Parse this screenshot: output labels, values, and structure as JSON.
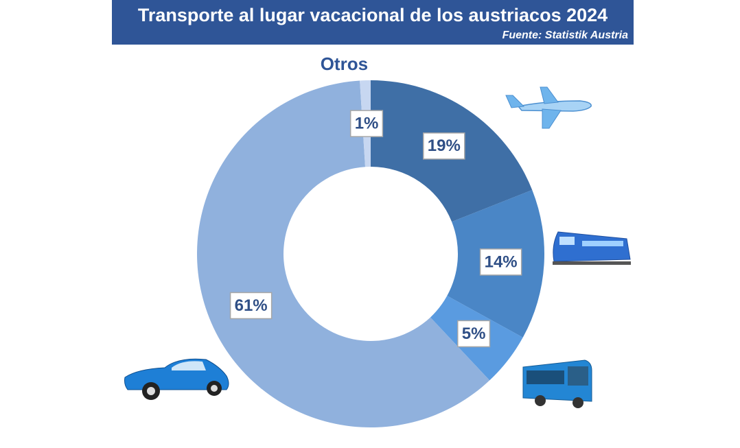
{
  "chart_data": {
    "type": "donut",
    "title": "Transporte al lugar vacacional de los austriacos 2024",
    "subtitle": "Fuente: Statistik Austria",
    "categories": [
      null,
      null,
      null,
      null,
      "Otros"
    ],
    "values": [
      19,
      14,
      5,
      61,
      1
    ],
    "value_labels": [
      "19%",
      "14%",
      "5%",
      "61%",
      "1%"
    ],
    "colors": [
      "#3f6fa6",
      "#4a86c6",
      "#5a9be0",
      "#90b1dd",
      "#c7d7f1"
    ]
  }
}
